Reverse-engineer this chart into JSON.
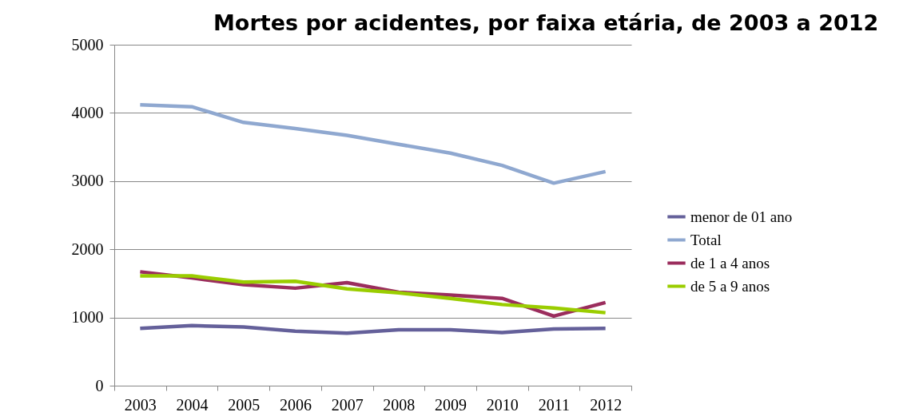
{
  "chart_data": {
    "type": "line",
    "title": "Mortes por acidentes, por faixa etária, de 2003 a 2012",
    "categories": [
      "2003",
      "2004",
      "2005",
      "2006",
      "2007",
      "2008",
      "2009",
      "2010",
      "2011",
      "2012"
    ],
    "series": [
      {
        "name": "menor de 01 ano",
        "color": "#64609a",
        "values": [
          840,
          880,
          860,
          800,
          770,
          820,
          820,
          780,
          830,
          840
        ]
      },
      {
        "name": "Total",
        "color": "#8fa8d0",
        "values": [
          4120,
          4090,
          3860,
          3770,
          3670,
          3540,
          3410,
          3230,
          2970,
          3140
        ]
      },
      {
        "name": "de 1 a 4 anos",
        "color": "#9b2d5d",
        "values": [
          1670,
          1580,
          1480,
          1430,
          1510,
          1370,
          1330,
          1280,
          1020,
          1220
        ]
      },
      {
        "name": "de 5 a 9 anos",
        "color": "#9acd00",
        "values": [
          1610,
          1610,
          1520,
          1530,
          1420,
          1360,
          1280,
          1190,
          1140,
          1070
        ]
      }
    ],
    "ylim": [
      0,
      5000
    ],
    "yticks": [
      0,
      1000,
      2000,
      3000,
      4000,
      5000
    ],
    "grid": "y",
    "legend": "right",
    "marker": "none",
    "line_style": "solid"
  }
}
